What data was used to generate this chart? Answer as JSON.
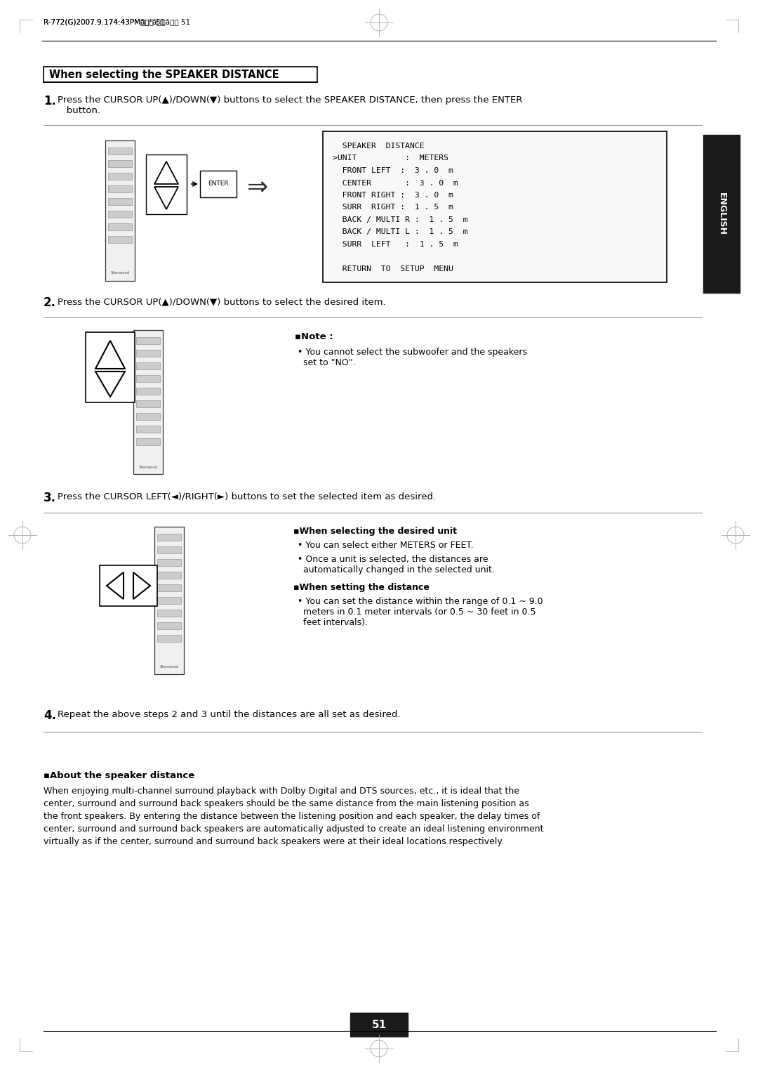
{
  "page_num": "51",
  "header_text": "R-772(G)2007.9.174:43PMè³¼ì´ì§ 51",
  "section_title": "When selecting the SPEAKER DISTANCE",
  "step1_num": "1.",
  "step1_text": "Press the CURSOR UP(",
  "step1_up": "▲",
  "step1_mid": ")/DOWN(",
  "step1_down": "▼",
  "step1_end": ") buttons to select the SPEAKER DISTANCE, then press the ENTER\n   button.",
  "step2_num": "2.",
  "step2_text": "Press the CURSOR UP(",
  "step2_up": "▲",
  "step2_mid": ")/DOWN(",
  "step2_down": "▼",
  "step2_end": ") buttons to select the desired item.",
  "step3_num": "3.",
  "step3_text": "Press the CURSOR LEFT(",
  "step3_left": "◄",
  "step3_mid": ")/RIGHT(",
  "step3_right": "►",
  "step3_end": ") buttons to set the selected item as desired.",
  "step4_num": "4.",
  "step4_text": "Repeat the above steps 2 and 3 until the distances are all set as desired.",
  "note_header": "▪Note :",
  "note_bullet": "• You cannot select the subwoofer and the speakers\n  set to \"NO\".",
  "unit_header": "▪When selecting the desired unit",
  "unit_b1": "• You can select either METERS or FEET.",
  "unit_b2": "• Once a unit is selected, the distances are\n  automatically changed in the selected unit.",
  "dist_header": "▪When setting the distance",
  "dist_b1": "• You can set the distance within the range of 0.1 ~ 9.0\n  meters in 0.1 meter intervals (or 0.5 ~ 30 feet in 0.5\n  feet intervals).",
  "about_title": "▪About the speaker distance",
  "about_line1": "When enjoying multi-channel surround playback with Dolby Digital and DTS sources, etc., it is ideal that the",
  "about_line2": "center, surround and surround back speakers should be the same distance from the main listening position as",
  "about_line3": "the front speakers. By entering the distance between the listening position and each speaker, the delay times of",
  "about_line4": "center, surround and surround back speakers are automatically adjusted to create an ideal listening environment",
  "about_line5": "virtually as if the center, surround and surround back speakers were at their ideal locations respectively.",
  "menu_line0": "  SPEAKER  DISTANCE",
  "menu_line1": ">UNIT          :  METERS",
  "menu_line2": "  FRONT LEFT  :  3 . 0  m",
  "menu_line3": "  CENTER       :  3 . 0  m",
  "menu_line4": "  FRONT RIGHT :  3 . 0  m",
  "menu_line5": "  SURR  RIGHT :  1 . 5  m",
  "menu_line6": "  BACK / MULTI R :  1 . 5  m",
  "menu_line7": "  BACK / MULTI L :  1 . 5  m",
  "menu_line8": "  SURR  LEFT   :  1 . 5  m",
  "menu_line9": "",
  "menu_line10": "  RETURN  TO  SETUP  MENU",
  "english_tab": "ENGLISH",
  "bg_color": "#ffffff",
  "text_color": "#000000",
  "tab_bg": "#1a1a1a",
  "tab_fg": "#ffffff"
}
